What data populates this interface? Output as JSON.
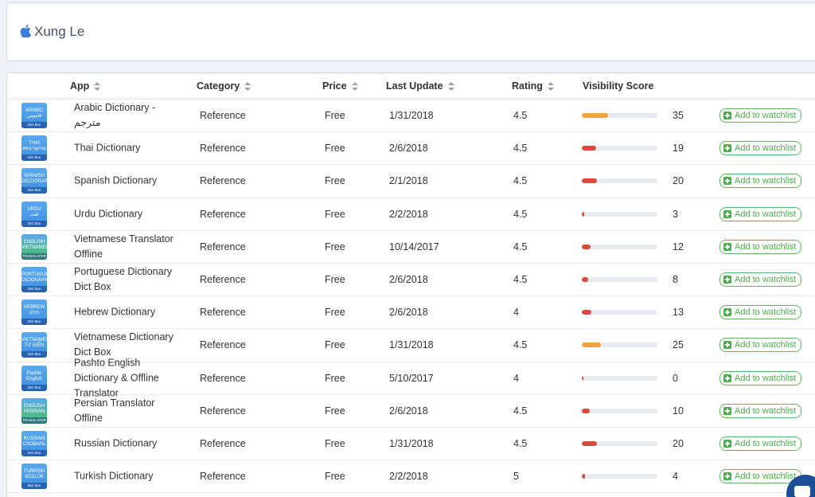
{
  "header": {
    "developer_name": "Xung Le",
    "logo_icon": "apple-icon"
  },
  "columns": {
    "app": "App",
    "category": "Category",
    "price": "Price",
    "last_update": "Last Update",
    "rating": "Rating",
    "visibility": "Visibility Score"
  },
  "watch_label": "Add to watchlist",
  "rows": [
    {
      "name": "Arabic Dictionary - مترجم",
      "category": "Reference",
      "price": "Free",
      "updated": "1/31/2018",
      "rating": "4.5",
      "score": "35",
      "score_value": 35,
      "bar_color": "#f0a43a",
      "icon_top": "ARABIC",
      "icon_sub": "قاموس",
      "icon_color": "#3d8fe0",
      "icon_label": "Dict Box"
    },
    {
      "name": "Thai Dictionary",
      "category": "Reference",
      "price": "Free",
      "updated": "2/6/2018",
      "rating": "4.5",
      "score": "19",
      "score_value": 19,
      "bar_color": "#d9493c",
      "icon_top": "THAI",
      "icon_sub": "พจนานุกรม",
      "icon_color": "#3d8fe0",
      "icon_label": "Dict Box"
    },
    {
      "name": "Spanish Dictionary",
      "category": "Reference",
      "price": "Free",
      "updated": "2/1/2018",
      "rating": "4.5",
      "score": "20",
      "score_value": 20,
      "bar_color": "#d9493c",
      "icon_top": "SPANISH",
      "icon_sub": "DICCIONARIO",
      "icon_color": "#3d8fe0",
      "icon_label": "Dict Box"
    },
    {
      "name": "Urdu Dictionary",
      "category": "Reference",
      "price": "Free",
      "updated": "2/2/2018",
      "rating": "4.5",
      "score": "3",
      "score_value": 3,
      "bar_color": "#d9493c",
      "icon_top": "URDU",
      "icon_sub": "لغت",
      "icon_color": "#3d8fe0",
      "icon_label": "Dict Box"
    },
    {
      "name": "Vietnamese Translator Offline",
      "category": "Reference",
      "price": "Free",
      "updated": "10/14/2017",
      "rating": "4.5",
      "score": "12",
      "score_value": 12,
      "bar_color": "#d9493c",
      "icon_top": "ENGLISH",
      "icon_sub": "VIETNAMESE",
      "icon_color": "#4cc25a",
      "icon_label": "TRANSLATOR OFFLINE"
    },
    {
      "name": "Portuguese Dictionary Dict Box",
      "category": "Reference",
      "price": "Free",
      "updated": "2/6/2018",
      "rating": "4.5",
      "score": "8",
      "score_value": 8,
      "bar_color": "#d9493c",
      "icon_top": "PORTUGUESE",
      "icon_sub": "DICIONÁRIO",
      "icon_color": "#3d8fe0",
      "icon_label": "Dict Box"
    },
    {
      "name": "Hebrew Dictionary",
      "category": "Reference",
      "price": "Free",
      "updated": "2/6/2018",
      "rating": "4",
      "score": "13",
      "score_value": 13,
      "bar_color": "#d9493c",
      "icon_top": "HEBREW",
      "icon_sub": "מילון",
      "icon_color": "#3d8fe0",
      "icon_label": "Dict Box"
    },
    {
      "name": "Vietnamese Dictionary Dict Box",
      "category": "Reference",
      "price": "Free",
      "updated": "1/31/2018",
      "rating": "4.5",
      "score": "25",
      "score_value": 25,
      "bar_color": "#f0a43a",
      "icon_top": "VIETNAMESE",
      "icon_sub": "TỪ ĐIỂN",
      "icon_color": "#3d8fe0",
      "icon_label": "Dict Box"
    },
    {
      "name": "Pashto English Dictionary & Offline Translator",
      "category": "Reference",
      "price": "Free",
      "updated": "5/10/2017",
      "rating": "4",
      "score": "0",
      "score_value": 0,
      "bar_color": "#d9493c",
      "icon_top": "Pashto",
      "icon_sub": "English",
      "icon_color": "#3d8fe0",
      "icon_label": "Dict Box"
    },
    {
      "name": "Persian Translator Offline",
      "category": "Reference",
      "price": "Free",
      "updated": "2/6/2018",
      "rating": "4.5",
      "score": "10",
      "score_value": 10,
      "bar_color": "#d9493c",
      "icon_top": "ENGLISH",
      "icon_sub": "PERSIAN",
      "icon_color": "#4cc25a",
      "icon_label": "TRANSLATOR OFFLINE"
    },
    {
      "name": "Russian Dictionary",
      "category": "Reference",
      "price": "Free",
      "updated": "1/31/2018",
      "rating": "4.5",
      "score": "20",
      "score_value": 20,
      "bar_color": "#d9493c",
      "icon_top": "RUSSIAN",
      "icon_sub": "СЛОВАРЬ",
      "icon_color": "#3d8fe0",
      "icon_label": "Dict Box"
    },
    {
      "name": "Turkish Dictionary",
      "category": "Reference",
      "price": "Free",
      "updated": "2/2/2018",
      "rating": "5",
      "score": "4",
      "score_value": 4,
      "bar_color": "#d9493c",
      "icon_top": "TURKISH",
      "icon_sub": "SÖZLÜK",
      "icon_color": "#3d8fe0",
      "icon_label": "Dict Box"
    }
  ]
}
